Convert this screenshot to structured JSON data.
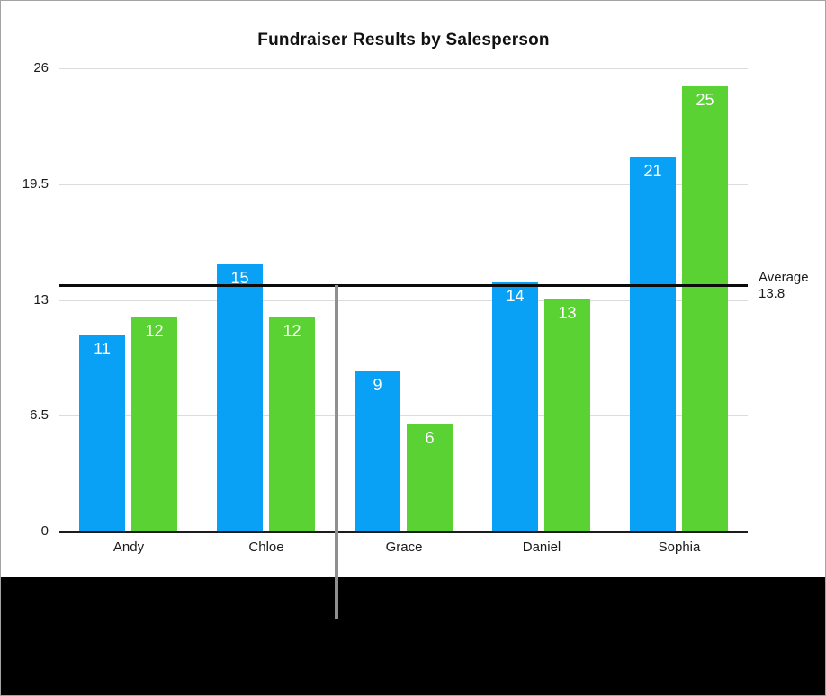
{
  "figure": {
    "background": "#FFFFFF",
    "border_color": "#A3A3A3",
    "bottom_strip_color": "#000000",
    "cursor_line_color": "#8F8F8F"
  },
  "chart_data": {
    "type": "bar",
    "title": "Fundraiser Results by Salesperson",
    "categories": [
      "Andy",
      "Chloe",
      "Grace",
      "Daniel",
      "Sophia"
    ],
    "series": [
      {
        "name": "series-blue",
        "color": "#09A1F6",
        "values": [
          11,
          15,
          9,
          14,
          21
        ]
      },
      {
        "name": "series-green",
        "color": "#5BD233",
        "values": [
          12,
          12,
          6,
          13,
          25
        ]
      }
    ],
    "y_ticks": [
      26,
      19.5,
      13,
      6.5,
      0
    ],
    "ylim": [
      0,
      26
    ],
    "grid": true,
    "legend": "none",
    "xlabel": "",
    "ylabel": "",
    "value_labels": "inside-top, white",
    "average_line": {
      "label": "Average",
      "value": "13.8",
      "numeric_value": 13.8,
      "color": "#0C0C0C"
    },
    "annotations": {
      "vertical_cursor_line": true
    }
  }
}
